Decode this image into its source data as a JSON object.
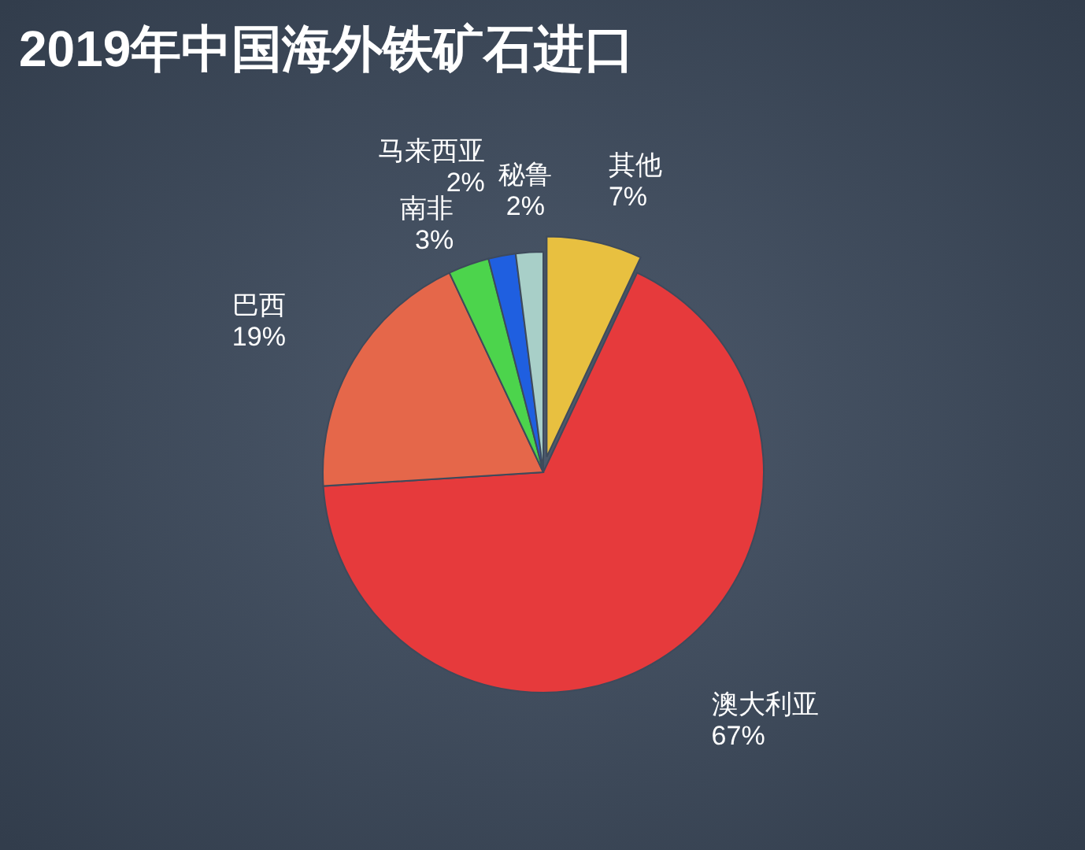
{
  "chart_data": {
    "type": "pie",
    "title": "2019年中国海外铁矿石进口",
    "categories": [
      "其他",
      "澳大利亚",
      "巴西",
      "南非",
      "马来西亚",
      "秘鲁"
    ],
    "values": [
      7,
      67,
      19,
      3,
      2,
      2
    ],
    "colors": [
      "#e8c040",
      "#e63a3c",
      "#e5674a",
      "#4cd44c",
      "#1f5fe0",
      "#a8cfc8"
    ],
    "value_labels": [
      "7%",
      "67%",
      "19%",
      "3%",
      "2%",
      "2%"
    ]
  }
}
